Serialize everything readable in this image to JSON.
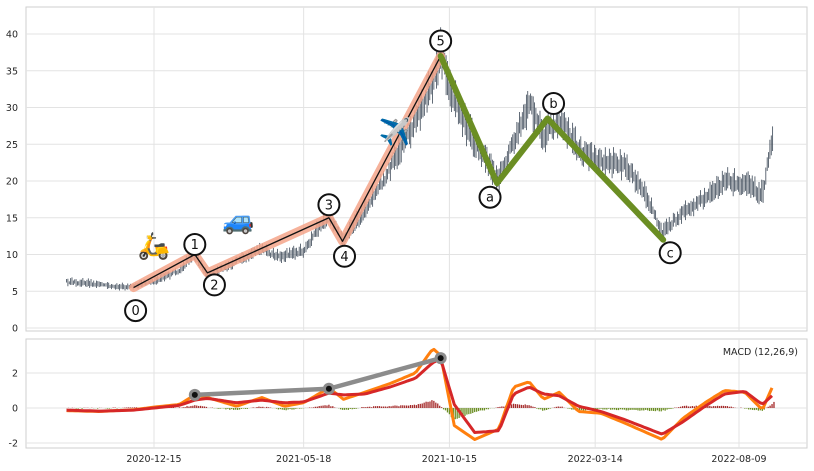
{
  "chart_data": [
    {
      "type": "line",
      "title": "",
      "xlabel": "",
      "ylabel": "",
      "ylim": [
        -0.5,
        43
      ],
      "yticks": [
        0,
        5,
        10,
        15,
        20,
        25,
        30,
        35,
        40
      ],
      "xticks": [
        "2020-12-15",
        "2021-05-18",
        "2021-10-15",
        "2022-03-14",
        "2022-08-09"
      ],
      "grid": true,
      "price_series": {
        "name": "",
        "x_start": "2020-09-16",
        "x_end": "2022-09-14",
        "anchors": [
          [
            "2020-09-16",
            6.3
          ],
          [
            "2020-10-20",
            5.9
          ],
          [
            "2020-11-15",
            5.5
          ],
          [
            "2020-12-15",
            6.3
          ],
          [
            "2021-01-10",
            7.8
          ],
          [
            "2021-01-26",
            10.0
          ],
          [
            "2021-02-08",
            7.0
          ],
          [
            "2021-03-10",
            9.0
          ],
          [
            "2021-04-05",
            10.8
          ],
          [
            "2021-04-20",
            9.6
          ],
          [
            "2021-05-18",
            10.4
          ],
          [
            "2021-06-05",
            14.0
          ],
          [
            "2021-06-13",
            15.0
          ],
          [
            "2021-06-28",
            12.0
          ],
          [
            "2021-07-20",
            16.0
          ],
          [
            "2021-08-15",
            21.5
          ],
          [
            "2021-09-10",
            28.0
          ],
          [
            "2021-09-28",
            33.0
          ],
          [
            "2021-10-06",
            37.0
          ],
          [
            "2021-10-22",
            30.0
          ],
          [
            "2021-11-10",
            25.0
          ],
          [
            "2021-12-05",
            20.0
          ],
          [
            "2021-12-25",
            27.0
          ],
          [
            "2022-01-05",
            30.5
          ],
          [
            "2022-01-20",
            26.0
          ],
          [
            "2022-02-05",
            28.5
          ],
          [
            "2022-02-25",
            24.0
          ],
          [
            "2022-03-20",
            22.5
          ],
          [
            "2022-04-15",
            22.0
          ],
          [
            "2022-05-01",
            19.0
          ],
          [
            "2022-05-22",
            13.0
          ],
          [
            "2022-06-12",
            15.5
          ],
          [
            "2022-07-05",
            17.5
          ],
          [
            "2022-07-25",
            20.0
          ],
          [
            "2022-08-15",
            19.5
          ],
          [
            "2022-09-02",
            18.0
          ],
          [
            "2022-09-08",
            22.5
          ],
          [
            "2022-09-14",
            26.5
          ]
        ]
      },
      "impulse_waves": {
        "labels": [
          "0",
          "1",
          "2",
          "3",
          "4",
          "5"
        ],
        "dates": [
          "2020-11-24",
          "2021-01-26",
          "2021-02-08",
          "2021-06-13",
          "2021-06-27",
          "2021-10-06"
        ],
        "values": [
          5.5,
          10.0,
          7.5,
          15.0,
          11.8,
          37.0
        ],
        "color": "#f4a58a"
      },
      "corrective_waves": {
        "labels": [
          "5",
          "a",
          "b",
          "c"
        ],
        "dates": [
          "2021-10-06",
          "2021-12-03",
          "2022-01-24",
          "2022-05-23"
        ],
        "values": [
          37.0,
          19.7,
          28.5,
          12.0
        ],
        "color": "#6b8e23"
      },
      "icons": [
        {
          "name": "scooter-icon",
          "glyph": "🛵",
          "date": "2020-12-15",
          "value": 11.0
        },
        {
          "name": "car-icon",
          "glyph": "🚙",
          "date": "2021-03-12",
          "value": 14.5
        },
        {
          "name": "airplane-icon",
          "glyph": "✈️",
          "date": "2021-08-20",
          "value": 26.5
        }
      ]
    },
    {
      "type": "line",
      "annotation": "MACD (12,26,9)",
      "ylim": [
        -2.2,
        3.8
      ],
      "yticks": [
        -2,
        0,
        2
      ],
      "grid": true,
      "colors": {
        "macd": "#ff7f0e",
        "signal": "#d62728",
        "hist_pos": "#a52a2a",
        "hist_neg": "#6b8e23",
        "divergence": "#8c8c8c"
      },
      "macd_series": {
        "name": "",
        "anchors": [
          [
            "2020-09-16",
            -0.15
          ],
          [
            "2020-10-20",
            -0.2
          ],
          [
            "2020-11-24",
            -0.1
          ],
          [
            "2020-12-15",
            0.05
          ],
          [
            "2021-01-10",
            0.2
          ],
          [
            "2021-01-26",
            0.75
          ],
          [
            "2021-02-08",
            0.6
          ],
          [
            "2021-03-10",
            0.1
          ],
          [
            "2021-04-05",
            0.6
          ],
          [
            "2021-04-28",
            0.1
          ],
          [
            "2021-05-18",
            0.3
          ],
          [
            "2021-06-13",
            1.15
          ],
          [
            "2021-06-28",
            0.5
          ],
          [
            "2021-07-20",
            0.9
          ],
          [
            "2021-08-15",
            1.4
          ],
          [
            "2021-09-10",
            2.0
          ],
          [
            "2021-09-28",
            3.4
          ],
          [
            "2021-10-06",
            3.0
          ],
          [
            "2021-10-20",
            -1.0
          ],
          [
            "2021-11-10",
            -1.8
          ],
          [
            "2021-12-05",
            -1.2
          ],
          [
            "2021-12-20",
            1.2
          ],
          [
            "2022-01-05",
            1.5
          ],
          [
            "2022-01-20",
            0.5
          ],
          [
            "2022-02-05",
            0.9
          ],
          [
            "2022-02-25",
            -0.2
          ],
          [
            "2022-03-20",
            -0.3
          ],
          [
            "2022-04-15",
            -0.9
          ],
          [
            "2022-05-22",
            -1.8
          ],
          [
            "2022-06-12",
            -0.6
          ],
          [
            "2022-07-05",
            0.3
          ],
          [
            "2022-07-25",
            1.0
          ],
          [
            "2022-08-15",
            0.9
          ],
          [
            "2022-09-02",
            -0.1
          ],
          [
            "2022-09-14",
            1.4
          ]
        ]
      },
      "signal_series": {
        "name": "",
        "anchors": [
          [
            "2020-09-16",
            -0.12
          ],
          [
            "2020-10-20",
            -0.18
          ],
          [
            "2020-11-24",
            -0.12
          ],
          [
            "2020-12-15",
            0.0
          ],
          [
            "2021-01-10",
            0.15
          ],
          [
            "2021-01-26",
            0.45
          ],
          [
            "2021-02-08",
            0.55
          ],
          [
            "2021-03-10",
            0.3
          ],
          [
            "2021-04-05",
            0.45
          ],
          [
            "2021-04-28",
            0.3
          ],
          [
            "2021-05-18",
            0.35
          ],
          [
            "2021-06-13",
            0.85
          ],
          [
            "2021-06-28",
            0.75
          ],
          [
            "2021-07-20",
            0.8
          ],
          [
            "2021-08-15",
            1.2
          ],
          [
            "2021-09-10",
            1.7
          ],
          [
            "2021-09-28",
            2.6
          ],
          [
            "2021-10-06",
            2.8
          ],
          [
            "2021-10-20",
            0.2
          ],
          [
            "2021-11-10",
            -1.4
          ],
          [
            "2021-12-05",
            -1.3
          ],
          [
            "2021-12-20",
            0.8
          ],
          [
            "2022-01-05",
            1.2
          ],
          [
            "2022-01-20",
            0.8
          ],
          [
            "2022-02-05",
            0.7
          ],
          [
            "2022-02-25",
            0.1
          ],
          [
            "2022-03-20",
            -0.2
          ],
          [
            "2022-04-15",
            -0.7
          ],
          [
            "2022-05-22",
            -1.5
          ],
          [
            "2022-06-12",
            -0.8
          ],
          [
            "2022-07-05",
            0.1
          ],
          [
            "2022-07-25",
            0.8
          ],
          [
            "2022-08-15",
            0.95
          ],
          [
            "2022-09-02",
            0.2
          ],
          [
            "2022-09-14",
            0.8
          ]
        ]
      },
      "divergence_line": {
        "dates": [
          "2021-01-26",
          "2021-06-13",
          "2021-10-06"
        ],
        "values": [
          0.75,
          1.1,
          2.85
        ]
      }
    }
  ]
}
